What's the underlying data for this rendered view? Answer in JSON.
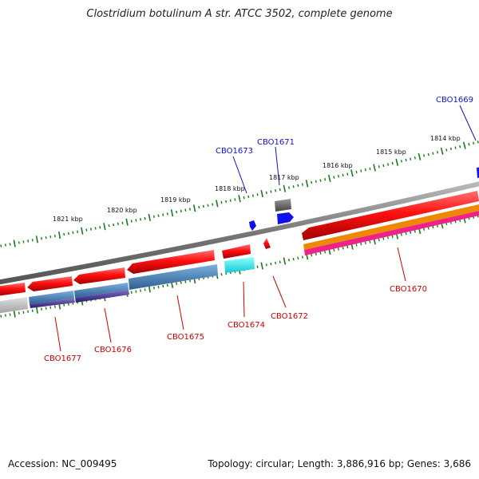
{
  "title": "Clostridium botulinum A str. ATCC 3502, complete genome",
  "footer": {
    "accession": "Accession: NC_009495",
    "topology": "Topology: circular; Length: 3,886,916 bp; Genes: 3,686"
  },
  "colors": {
    "forward_label": "#1010cc",
    "reverse_label": "#cc0000",
    "backbone": "#808080",
    "tick": "#1a7a1a",
    "cds": "#ee1111",
    "steelblue": "#4a86c0",
    "cyan": "#22e0e0",
    "purple": "#553399",
    "orange": "#ee8800",
    "magenta": "#ee2288",
    "grey_feature": "#666666",
    "light_grey": "#b0b0b0",
    "blue_feature": "#1010ee"
  },
  "kbp_labels": [
    "1821 kbp",
    "1820 kbp",
    "1819 kbp",
    "1818 kbp",
    "1817 kbp",
    "1816 kbp",
    "1815 kbp",
    "1814 kbp"
  ],
  "forward_genes": [
    "CBO1673",
    "CBO1671",
    "CBO1669"
  ],
  "reverse_genes": [
    "CBO1677",
    "CBO1676",
    "CBO1675",
    "CBO1674",
    "CBO1672",
    "CBO1670"
  ]
}
